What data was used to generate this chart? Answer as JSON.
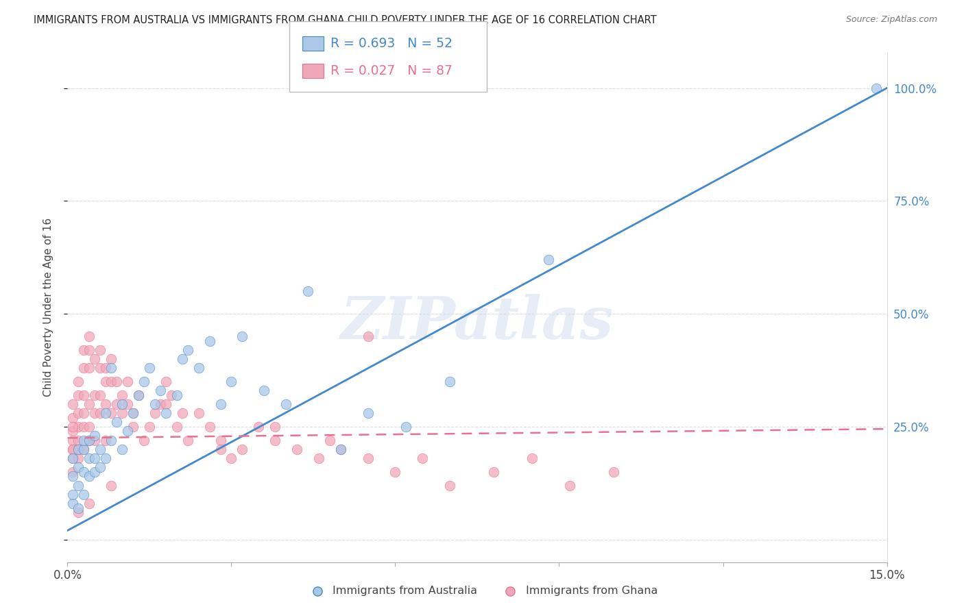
{
  "title": "IMMIGRANTS FROM AUSTRALIA VS IMMIGRANTS FROM GHANA CHILD POVERTY UNDER THE AGE OF 16 CORRELATION CHART",
  "source": "Source: ZipAtlas.com",
  "ylabel": "Child Poverty Under the Age of 16",
  "xlim": [
    0.0,
    0.15
  ],
  "ylim": [
    -0.05,
    1.08
  ],
  "australia_color": "#aac8e8",
  "ghana_color": "#f0a8b8",
  "australia_line_color": "#4488cc",
  "ghana_line_color": "#e87090",
  "watermark": "ZIPatlas",
  "legend_label_australia": "Immigrants from Australia",
  "legend_label_ghana": "Immigrants from Ghana",
  "aus_line_x": [
    0.0,
    0.15
  ],
  "aus_line_y": [
    0.02,
    1.0
  ],
  "gha_line_x": [
    0.0,
    0.15
  ],
  "gha_line_y": [
    0.225,
    0.245
  ],
  "australia_x": [
    0.001,
    0.001,
    0.001,
    0.001,
    0.002,
    0.002,
    0.002,
    0.002,
    0.003,
    0.003,
    0.003,
    0.003,
    0.004,
    0.004,
    0.004,
    0.005,
    0.005,
    0.005,
    0.006,
    0.006,
    0.007,
    0.007,
    0.008,
    0.008,
    0.009,
    0.01,
    0.01,
    0.011,
    0.012,
    0.013,
    0.014,
    0.015,
    0.016,
    0.017,
    0.018,
    0.02,
    0.021,
    0.022,
    0.024,
    0.026,
    0.028,
    0.03,
    0.032,
    0.036,
    0.04,
    0.044,
    0.05,
    0.055,
    0.062,
    0.07,
    0.088,
    0.148
  ],
  "australia_y": [
    0.08,
    0.1,
    0.14,
    0.18,
    0.07,
    0.12,
    0.16,
    0.2,
    0.1,
    0.15,
    0.2,
    0.22,
    0.14,
    0.18,
    0.22,
    0.15,
    0.18,
    0.23,
    0.16,
    0.2,
    0.18,
    0.28,
    0.22,
    0.38,
    0.26,
    0.2,
    0.3,
    0.24,
    0.28,
    0.32,
    0.35,
    0.38,
    0.3,
    0.33,
    0.28,
    0.32,
    0.4,
    0.42,
    0.38,
    0.44,
    0.3,
    0.35,
    0.45,
    0.33,
    0.3,
    0.55,
    0.2,
    0.28,
    0.25,
    0.35,
    0.62,
    1.0
  ],
  "ghana_x": [
    0.001,
    0.001,
    0.001,
    0.001,
    0.001,
    0.001,
    0.001,
    0.002,
    0.002,
    0.002,
    0.002,
    0.002,
    0.002,
    0.002,
    0.003,
    0.003,
    0.003,
    0.003,
    0.003,
    0.003,
    0.004,
    0.004,
    0.004,
    0.004,
    0.004,
    0.004,
    0.005,
    0.005,
    0.005,
    0.005,
    0.006,
    0.006,
    0.006,
    0.006,
    0.007,
    0.007,
    0.007,
    0.007,
    0.008,
    0.008,
    0.008,
    0.009,
    0.009,
    0.01,
    0.01,
    0.011,
    0.011,
    0.012,
    0.012,
    0.013,
    0.014,
    0.015,
    0.016,
    0.017,
    0.018,
    0.019,
    0.02,
    0.021,
    0.022,
    0.024,
    0.026,
    0.028,
    0.03,
    0.032,
    0.035,
    0.038,
    0.042,
    0.046,
    0.05,
    0.055,
    0.06,
    0.065,
    0.07,
    0.078,
    0.085,
    0.092,
    0.1,
    0.055,
    0.048,
    0.038,
    0.028,
    0.018,
    0.008,
    0.004,
    0.002,
    0.001,
    0.001
  ],
  "ghana_y": [
    0.22,
    0.24,
    0.27,
    0.3,
    0.18,
    0.2,
    0.15,
    0.22,
    0.25,
    0.28,
    0.32,
    0.35,
    0.18,
    0.2,
    0.25,
    0.28,
    0.32,
    0.38,
    0.42,
    0.2,
    0.25,
    0.3,
    0.38,
    0.42,
    0.45,
    0.22,
    0.28,
    0.32,
    0.4,
    0.22,
    0.28,
    0.32,
    0.38,
    0.42,
    0.3,
    0.35,
    0.38,
    0.22,
    0.28,
    0.35,
    0.4,
    0.3,
    0.35,
    0.28,
    0.32,
    0.3,
    0.35,
    0.25,
    0.28,
    0.32,
    0.22,
    0.25,
    0.28,
    0.3,
    0.35,
    0.32,
    0.25,
    0.28,
    0.22,
    0.28,
    0.25,
    0.22,
    0.18,
    0.2,
    0.25,
    0.22,
    0.2,
    0.18,
    0.2,
    0.18,
    0.15,
    0.18,
    0.12,
    0.15,
    0.18,
    0.12,
    0.15,
    0.45,
    0.22,
    0.25,
    0.2,
    0.3,
    0.12,
    0.08,
    0.06,
    0.2,
    0.25
  ]
}
